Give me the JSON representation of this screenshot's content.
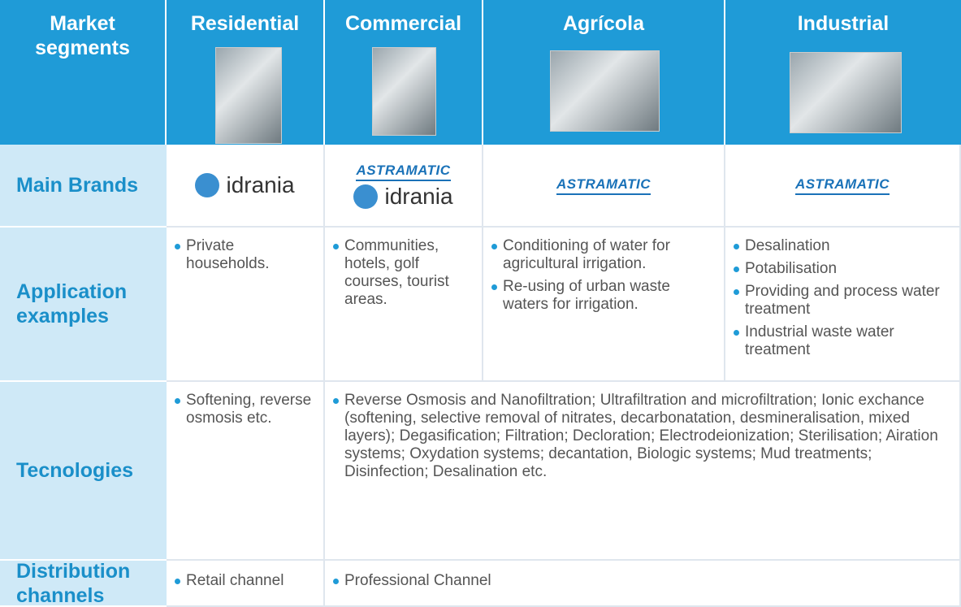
{
  "table": {
    "header": [
      "Market segments",
      "Residential",
      "Commercial",
      "Agrícola",
      "Industrial"
    ],
    "rows": [
      {
        "label": "Main Brands",
        "cells": [
          [
            "idrania"
          ],
          [
            "ASTRAMATIC",
            "idrania"
          ],
          [
            "ASTRAMATIC"
          ],
          [
            "ASTRAMATIC"
          ]
        ]
      },
      {
        "label": "Application examples",
        "cells": [
          [
            "Private households."
          ],
          [
            "Communities, hotels, golf courses, tourist areas."
          ],
          [
            "Conditioning of water for agricultural irrigation.",
            "Re-using of urban waste waters for irrigation."
          ],
          [
            "Desalination",
            "Potabilisation",
            "Providing and process water treatment",
            "Industrial waste water treatment"
          ]
        ]
      },
      {
        "label": "Tecnologies",
        "cells": [
          [
            "Softening, reverse osmosis etc."
          ],
          [
            "Reverse Osmosis and Nanofiltration; Ultrafiltration and microfiltration; Ionic exchance (softening, selective removal of nitrates, decarbonatation, desmineralisation, mixed layers); Degasification; Filtration; Decloration; Electrodeionization; Sterilisation; Airation systems; Oxydation systems; decantation, Biologic systems; Mud treatments; Disinfection; Desalination etc."
          ]
        ]
      },
      {
        "label": "Distribution channels",
        "cells": [
          [
            "Retail channel"
          ],
          [
            "Professional Channel"
          ]
        ]
      }
    ]
  }
}
